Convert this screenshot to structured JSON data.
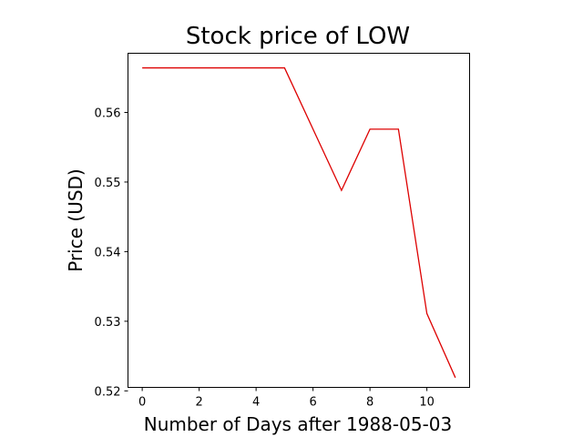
{
  "chart_data": {
    "type": "line",
    "title": "Stock price of LOW",
    "xlabel": "Number of Days after 1988-05-03",
    "ylabel": "Price (USD)",
    "xlim": [
      -0.5,
      11.5
    ],
    "ylim": [
      0.5205,
      0.5685
    ],
    "x_ticks": [
      0,
      2,
      4,
      6,
      8,
      10
    ],
    "x_tick_labels": [
      "0",
      "2",
      "4",
      "6",
      "8",
      "10"
    ],
    "y_ticks": [
      0.52,
      0.53,
      0.54,
      0.55,
      0.56
    ],
    "y_tick_labels": [
      "0.52",
      "0.53",
      "0.54",
      "0.55",
      "0.56"
    ],
    "grid": false,
    "series": [
      {
        "color": "#dd0000",
        "x": [
          0,
          1,
          2,
          3,
          4,
          5,
          6,
          7,
          8,
          9,
          10,
          11
        ],
        "values": [
          0.5664,
          0.5664,
          0.5664,
          0.5664,
          0.5664,
          0.5664,
          0.5576,
          0.5488,
          0.5576,
          0.5576,
          0.5311,
          0.5219
        ]
      }
    ]
  }
}
